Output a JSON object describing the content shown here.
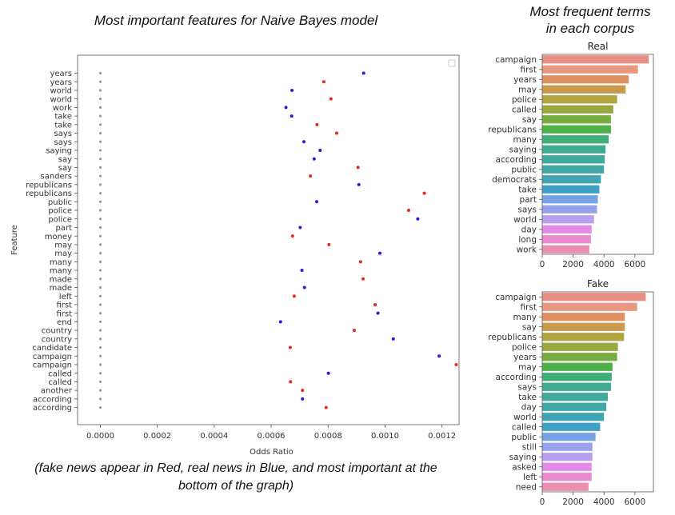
{
  "headings": {
    "main_title": "Most important features for Naive Bayes model",
    "right_title_line1": "Most frequent terms",
    "right_title_line2": "in each corpus",
    "footnote_line1": "(fake news appear in Red, real news in Blue, and most important at the",
    "footnote_line2": "bottom of the graph)"
  },
  "colors": {
    "fake": "#e8271d",
    "real": "#1f1fe0",
    "grid_dot": "#9a9a9a"
  },
  "chart_data": [
    {
      "type": "scatter",
      "xlabel": "Odds Ratio",
      "ylabel": "Feature",
      "xlim": [
        -8e-05,
        0.00126
      ],
      "xticks": [
        0.0,
        0.0002,
        0.0004,
        0.0006,
        0.0008,
        0.001,
        0.0012
      ],
      "xtick_labels": [
        "0.0000",
        "0.0002",
        "0.0004",
        "0.0006",
        "0.0008",
        "0.0010",
        "0.0012"
      ],
      "points": [
        {
          "feature": "years",
          "value": 0.000925,
          "corpus": "real"
        },
        {
          "feature": "years",
          "value": 0.000785,
          "corpus": "fake"
        },
        {
          "feature": "world",
          "value": 0.000673,
          "corpus": "real"
        },
        {
          "feature": "world",
          "value": 0.00081,
          "corpus": "fake"
        },
        {
          "feature": "work",
          "value": 0.000652,
          "corpus": "real"
        },
        {
          "feature": "take",
          "value": 0.000672,
          "corpus": "real"
        },
        {
          "feature": "take",
          "value": 0.000761,
          "corpus": "fake"
        },
        {
          "feature": "says",
          "value": 0.00083,
          "corpus": "fake"
        },
        {
          "feature": "says",
          "value": 0.000715,
          "corpus": "real"
        },
        {
          "feature": "saying",
          "value": 0.000772,
          "corpus": "real"
        },
        {
          "feature": "say",
          "value": 0.000751,
          "corpus": "real"
        },
        {
          "feature": "say",
          "value": 0.000905,
          "corpus": "fake"
        },
        {
          "feature": "sanders",
          "value": 0.000738,
          "corpus": "fake"
        },
        {
          "feature": "republicans",
          "value": 0.000908,
          "corpus": "real"
        },
        {
          "feature": "republicans",
          "value": 0.001138,
          "corpus": "fake"
        },
        {
          "feature": "public",
          "value": 0.00076,
          "corpus": "real"
        },
        {
          "feature": "police",
          "value": 0.001083,
          "corpus": "fake"
        },
        {
          "feature": "police",
          "value": 0.001115,
          "corpus": "real"
        },
        {
          "feature": "part",
          "value": 0.000702,
          "corpus": "real"
        },
        {
          "feature": "money",
          "value": 0.000675,
          "corpus": "fake"
        },
        {
          "feature": "may",
          "value": 0.000803,
          "corpus": "fake"
        },
        {
          "feature": "may",
          "value": 0.000982,
          "corpus": "real"
        },
        {
          "feature": "many",
          "value": 0.000914,
          "corpus": "fake"
        },
        {
          "feature": "many",
          "value": 0.000708,
          "corpus": "real"
        },
        {
          "feature": "made",
          "value": 0.000923,
          "corpus": "fake"
        },
        {
          "feature": "made",
          "value": 0.000717,
          "corpus": "real"
        },
        {
          "feature": "left",
          "value": 0.000681,
          "corpus": "fake"
        },
        {
          "feature": "first",
          "value": 0.000965,
          "corpus": "fake"
        },
        {
          "feature": "first",
          "value": 0.000975,
          "corpus": "real"
        },
        {
          "feature": "end",
          "value": 0.000633,
          "corpus": "real"
        },
        {
          "feature": "country",
          "value": 0.000892,
          "corpus": "fake"
        },
        {
          "feature": "country",
          "value": 0.001029,
          "corpus": "real"
        },
        {
          "feature": "candidate",
          "value": 0.000667,
          "corpus": "fake"
        },
        {
          "feature": "campaign",
          "value": 0.00119,
          "corpus": "real"
        },
        {
          "feature": "campaign",
          "value": 0.00125,
          "corpus": "fake"
        },
        {
          "feature": "called",
          "value": 0.000801,
          "corpus": "real"
        },
        {
          "feature": "called",
          "value": 0.000668,
          "corpus": "fake"
        },
        {
          "feature": "another",
          "value": 0.00071,
          "corpus": "fake"
        },
        {
          "feature": "according",
          "value": 0.00071,
          "corpus": "real"
        },
        {
          "feature": "according",
          "value": 0.000793,
          "corpus": "fake"
        }
      ]
    },
    {
      "type": "bar",
      "orientation": "horizontal",
      "title": "Real",
      "categories": [
        "campaign",
        "first",
        "years",
        "may",
        "police",
        "called",
        "say",
        "republicans",
        "many",
        "saying",
        "according",
        "public",
        "democrats",
        "take",
        "part",
        "says",
        "world",
        "day",
        "long",
        "work"
      ],
      "values": [
        6900,
        6200,
        5600,
        5400,
        4850,
        4600,
        4450,
        4450,
        4300,
        4100,
        4050,
        4000,
        3800,
        3700,
        3600,
        3550,
        3350,
        3200,
        3150,
        3050
      ],
      "colors": [
        "#ea8f86",
        "#e99780",
        "#df9161",
        "#c89a4a",
        "#b1a441",
        "#9aa73f",
        "#77ac3f",
        "#4db049",
        "#3fae78",
        "#40ab8e",
        "#3fa99b",
        "#3fa7a6",
        "#40a4b5",
        "#3ea1c4",
        "#76a3e6",
        "#97a2ee",
        "#b7a0ef",
        "#e38ae8",
        "#e98ad0",
        "#ea8fb0"
      ],
      "xlim": [
        0,
        7200
      ],
      "xticks": [
        0,
        2000,
        4000,
        6000
      ]
    },
    {
      "type": "bar",
      "orientation": "horizontal",
      "title": "Fake",
      "categories": [
        "campaign",
        "first",
        "many",
        "say",
        "republicans",
        "police",
        "years",
        "may",
        "according",
        "says",
        "take",
        "day",
        "world",
        "called",
        "public",
        "still",
        "saying",
        "asked",
        "left",
        "need"
      ],
      "values": [
        6700,
        6150,
        5350,
        5350,
        5300,
        4900,
        4850,
        4550,
        4500,
        4450,
        4250,
        4150,
        4000,
        3750,
        3450,
        3250,
        3250,
        3200,
        3200,
        3000
      ],
      "colors": [
        "#ea8f86",
        "#e99780",
        "#df9161",
        "#c89a4a",
        "#b1a441",
        "#9aa73f",
        "#77ac3f",
        "#4db049",
        "#3fae78",
        "#40ab8e",
        "#3fa99b",
        "#3fa7a6",
        "#40a4b5",
        "#3ea1c4",
        "#76a3e6",
        "#97a2ee",
        "#b7a0ef",
        "#e38ae8",
        "#e98ad0",
        "#ea8fb0"
      ],
      "xlim": [
        0,
        7200
      ],
      "xticks": [
        0,
        2000,
        4000,
        6000
      ]
    }
  ]
}
